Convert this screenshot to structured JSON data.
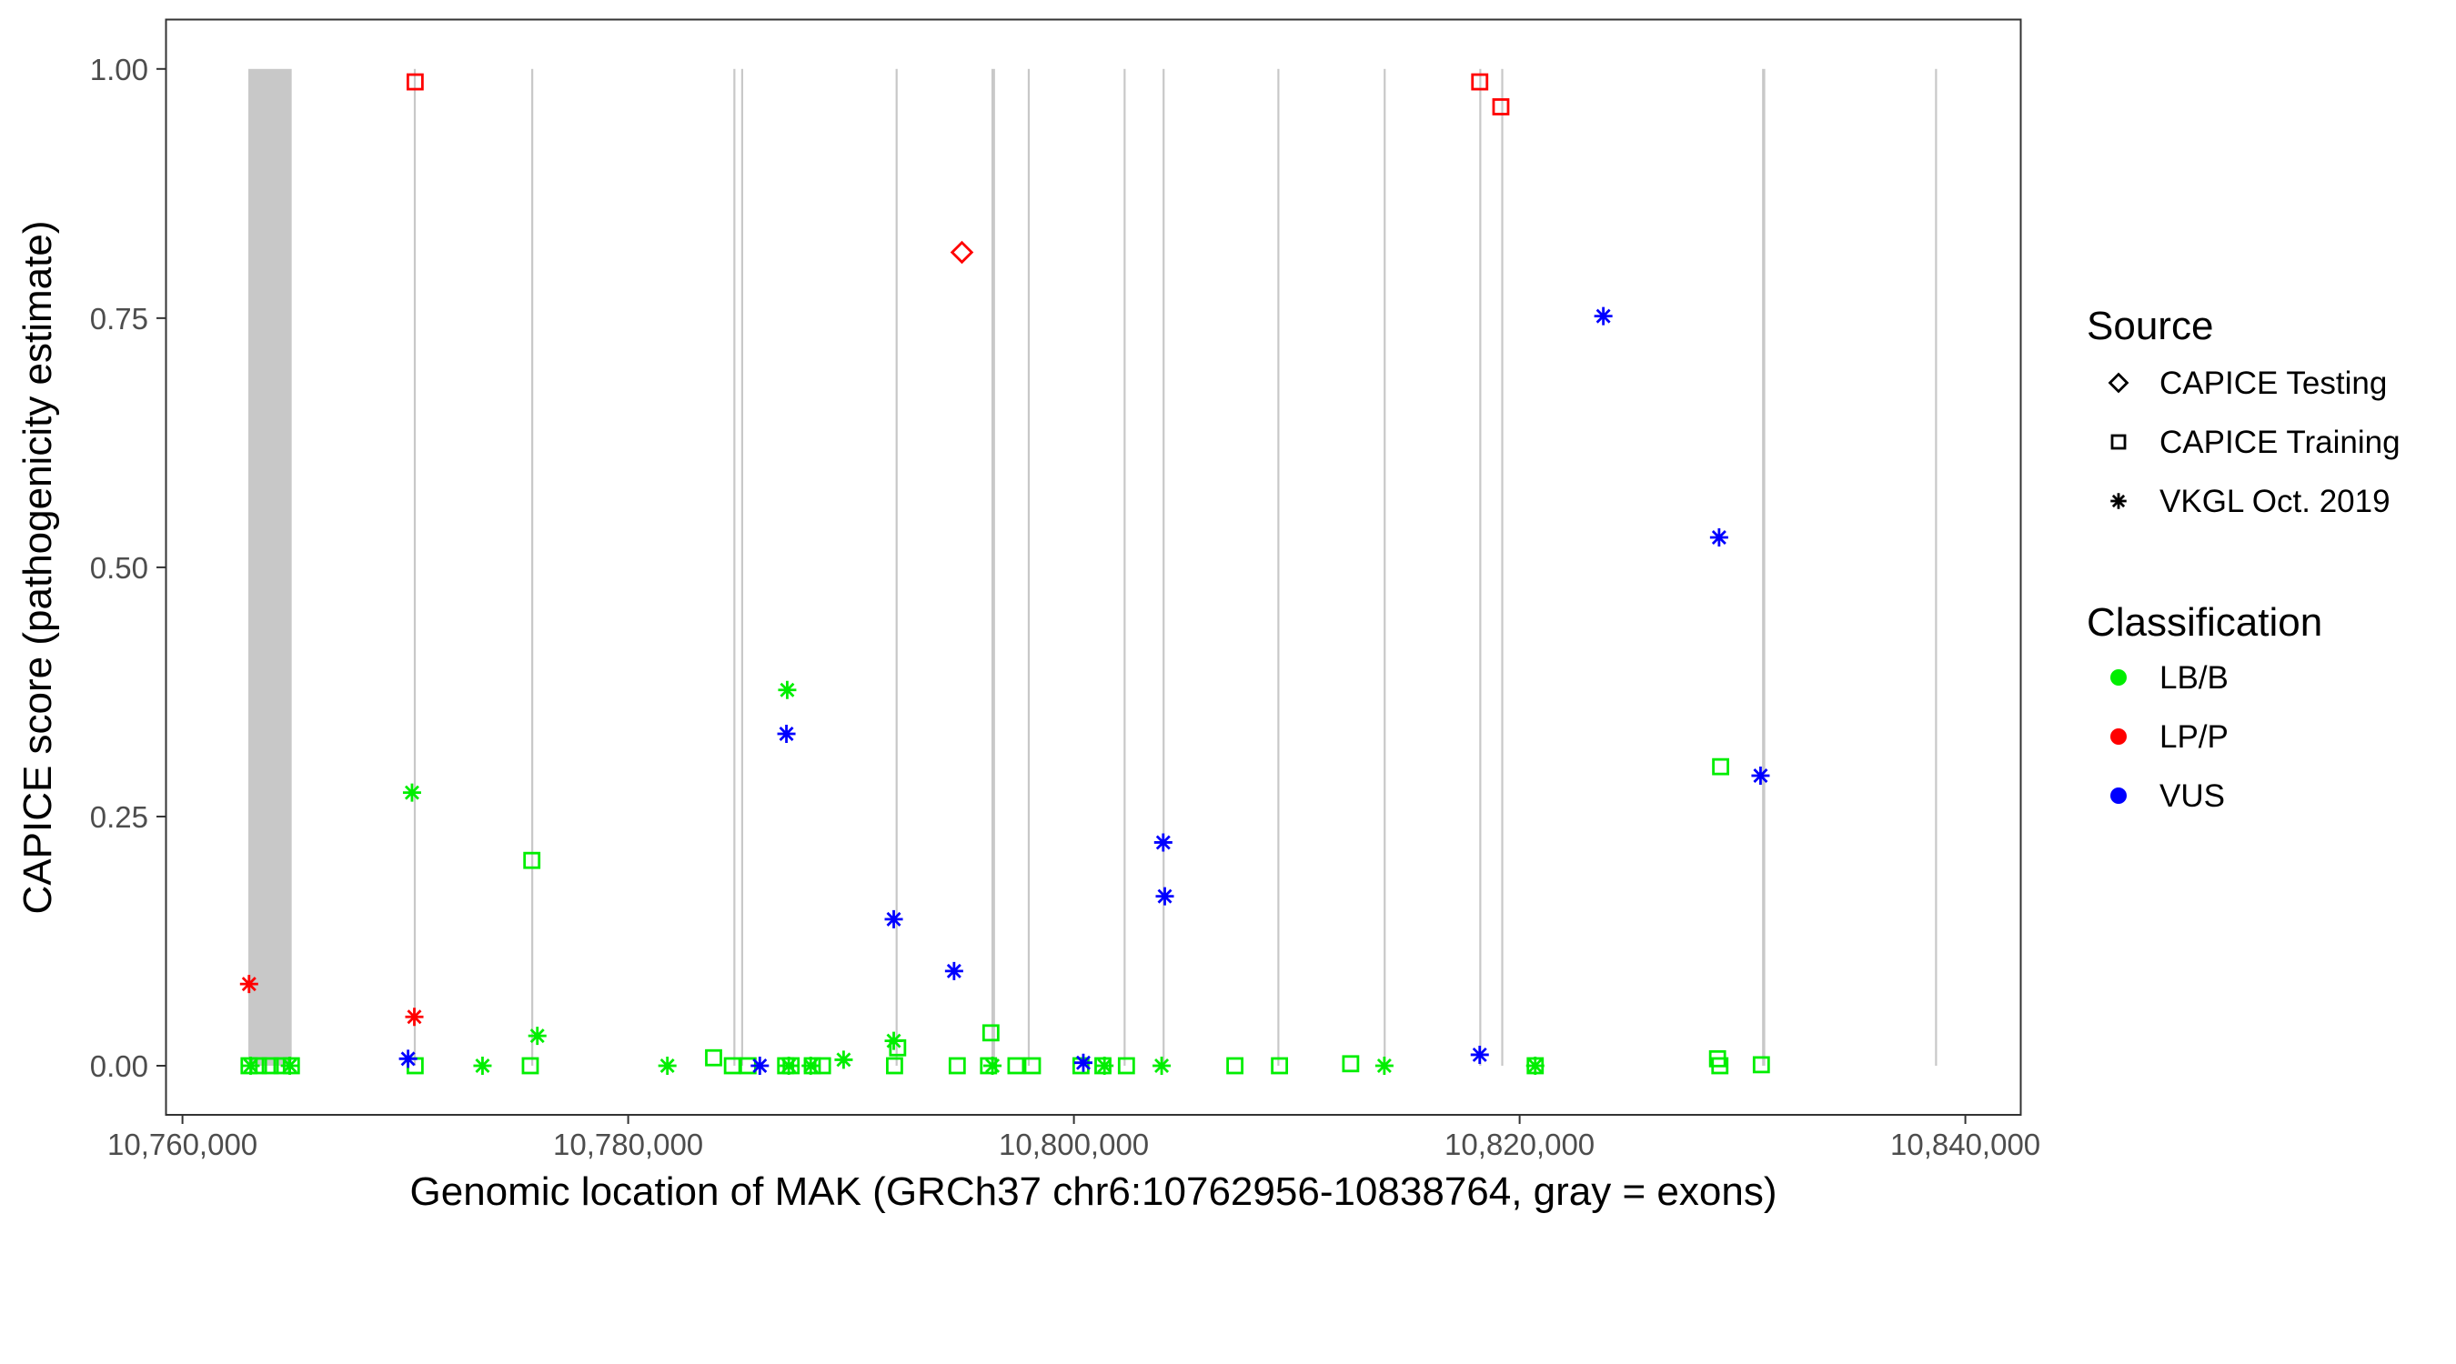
{
  "chart_data": {
    "type": "scatter",
    "xlabel": "Genomic location of MAK (GRCh37 chr6:10762956-10838764, gray = exons)",
    "ylabel": "CAPICE score (pathogenicity estimate)",
    "xlim": [
      10758500,
      10843000
    ],
    "ylim": [
      -0.045,
      1.045
    ],
    "x_ticks": [
      10760000,
      10780000,
      10800000,
      10820000,
      10840000
    ],
    "x_tick_labels": [
      "10,760,000",
      "10,780,000",
      "10,800,000",
      "10,820,000",
      "10,840,000"
    ],
    "y_ticks": [
      0,
      0.25,
      0.5,
      0.75,
      1
    ],
    "y_tick_labels": [
      "0.00",
      "0.25",
      "0.50",
      "0.75",
      "1.00"
    ],
    "grid": false,
    "legend_placement": "right",
    "exon_color": "#c8c8c8",
    "exons": [
      [
        10762956,
        10764900
      ],
      [
        10770380,
        10770430
      ],
      [
        10775650,
        10775700
      ],
      [
        10784720,
        10784770
      ],
      [
        10785070,
        10785120
      ],
      [
        10792000,
        10792050
      ],
      [
        10796300,
        10796460
      ],
      [
        10797930,
        10798000
      ],
      [
        10802230,
        10802280
      ],
      [
        10803980,
        10804040
      ],
      [
        10809130,
        10809180
      ],
      [
        10813900,
        10813950
      ],
      [
        10818190,
        10818230
      ],
      [
        10819175,
        10819200
      ],
      [
        10830880,
        10831020
      ],
      [
        10838640,
        10838700
      ]
    ],
    "legend": {
      "source": {
        "title": "Source",
        "items": [
          {
            "label": "CAPICE Testing",
            "shape": "diamond"
          },
          {
            "label": "CAPICE Training",
            "shape": "square"
          },
          {
            "label": "VKGL Oct. 2019",
            "shape": "asterisk"
          }
        ]
      },
      "classification": {
        "title": "Classification",
        "items": [
          {
            "label": "LB/B",
            "color": "#00ee00"
          },
          {
            "label": "LP/P",
            "color": "#ff0000"
          },
          {
            "label": "VUS",
            "color": "#0000ff"
          }
        ]
      }
    },
    "series": [
      {
        "source": "CAPICE Testing",
        "class": "LP/P",
        "points": [
          [
            10794975,
            0.816
          ]
        ]
      },
      {
        "source": "CAPICE Training",
        "class": "LP/P",
        "points": [
          [
            10770440,
            0.987
          ],
          [
            10818210,
            0.987
          ],
          [
            10819158,
            0.962
          ]
        ]
      },
      {
        "source": "CAPICE Training",
        "class": "LB/B",
        "points": [
          [
            10775677,
            0.206
          ],
          [
            10796275,
            0.033
          ],
          [
            10792092,
            0.018
          ],
          [
            10783832,
            0.008
          ],
          [
            10829020,
            0.3
          ],
          [
            10828880,
            0.007
          ],
          [
            10812420,
            0.002
          ],
          [
            10830846,
            0.001
          ],
          [
            10762988,
            0
          ],
          [
            10763410,
            0
          ],
          [
            10763937,
            0
          ],
          [
            10764464,
            0
          ],
          [
            10764886,
            0
          ],
          [
            10770440,
            0
          ],
          [
            10775607,
            0
          ],
          [
            10784675,
            0
          ],
          [
            10785378,
            0
          ],
          [
            10787066,
            0
          ],
          [
            10787312,
            0
          ],
          [
            10788261,
            0
          ],
          [
            10788718,
            0
          ],
          [
            10791952,
            0
          ],
          [
            10794764,
            0
          ],
          [
            10796170,
            0
          ],
          [
            10797400,
            0
          ],
          [
            10798138,
            0
          ],
          [
            10800317,
            0
          ],
          [
            10801301,
            0
          ],
          [
            10802356,
            0
          ],
          [
            10807224,
            0
          ],
          [
            10809225,
            0
          ],
          [
            10820700,
            0
          ],
          [
            10828986,
            0
          ]
        ]
      },
      {
        "source": "VKGL Oct. 2019",
        "class": "LB/B",
        "points": [
          [
            10787136,
            0.377
          ],
          [
            10770300,
            0.274
          ],
          [
            10775923,
            0.03
          ],
          [
            10791916,
            0.025
          ],
          [
            10789667,
            0.006
          ],
          [
            10763058,
            0
          ],
          [
            10764816,
            0
          ],
          [
            10773463,
            0
          ],
          [
            10781758,
            0
          ],
          [
            10787206,
            0
          ],
          [
            10788190,
            0
          ],
          [
            10796345,
            0
          ],
          [
            10801371,
            0
          ],
          [
            10803937,
            0
          ],
          [
            10813930,
            0
          ],
          [
            10820700,
            0
          ]
        ]
      },
      {
        "source": "VKGL Oct. 2019",
        "class": "LP/P",
        "points": [
          [
            10762988,
            0.082
          ],
          [
            10770404,
            0.049
          ]
        ]
      },
      {
        "source": "VKGL Oct. 2019",
        "class": "VUS",
        "points": [
          [
            10787100,
            0.333
          ],
          [
            10804008,
            0.224
          ],
          [
            10804078,
            0.17
          ],
          [
            10791916,
            0.147
          ],
          [
            10794623,
            0.095
          ],
          [
            10770123,
            0.007
          ],
          [
            10800423,
            0.003
          ],
          [
            10785906,
            0
          ],
          [
            10823756,
            0.752
          ],
          [
            10828950,
            0.53
          ],
          [
            10830810,
            0.291
          ],
          [
            10818210,
            0.011
          ]
        ]
      }
    ]
  }
}
